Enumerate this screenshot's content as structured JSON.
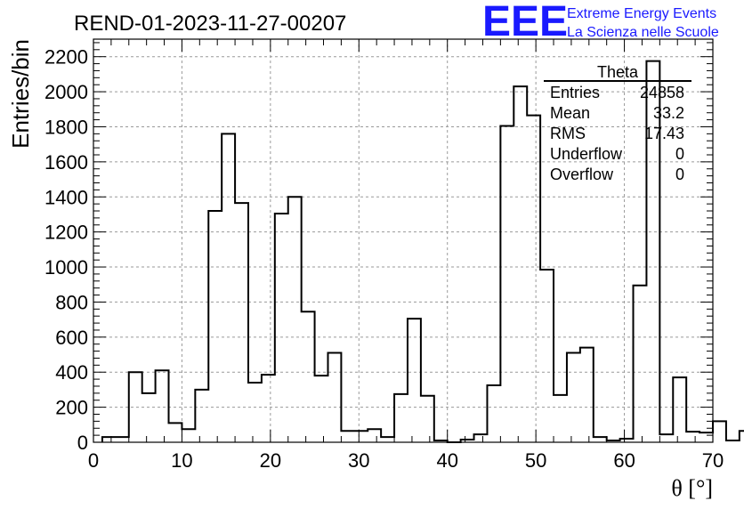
{
  "run_title": "REND-01-2023-11-27-00207",
  "logo": {
    "mark": "EEE",
    "line1": "Extreme Energy Events",
    "line2": "La Scienza nelle Scuole",
    "color": "#1a1aff"
  },
  "stats": {
    "title": "Theta",
    "rows": [
      {
        "label": "Entries",
        "value": "24858"
      },
      {
        "label": "Mean",
        "value": "33.2"
      },
      {
        "label": "RMS",
        "value": "17.43"
      },
      {
        "label": "Underflow",
        "value": "0"
      },
      {
        "label": "Overflow",
        "value": "0"
      }
    ]
  },
  "chart_data": {
    "type": "bar",
    "subtype": "step-histogram",
    "xlabel": "θ [°]",
    "ylabel": "Entries/bin",
    "xlim": [
      0,
      70
    ],
    "ylim": [
      0,
      2300
    ],
    "xticks": [
      0,
      10,
      20,
      30,
      40,
      50,
      60,
      70
    ],
    "yticks": [
      0,
      200,
      400,
      600,
      800,
      1000,
      1200,
      1400,
      1600,
      1800,
      2000,
      2200
    ],
    "grid": true,
    "bin_width": 1.5,
    "bin_start": 1,
    "values": [
      30,
      30,
      400,
      280,
      410,
      110,
      75,
      300,
      1320,
      1760,
      1365,
      340,
      385,
      1305,
      1400,
      745,
      380,
      510,
      65,
      65,
      75,
      30,
      275,
      705,
      265,
      10,
      0,
      15,
      45,
      325,
      1805,
      2030,
      1865,
      985,
      270,
      510,
      540,
      30,
      10,
      20,
      895,
      2175,
      45,
      370,
      60,
      55,
      120,
      10,
      65,
      0
    ],
    "line_color": "#000000"
  }
}
